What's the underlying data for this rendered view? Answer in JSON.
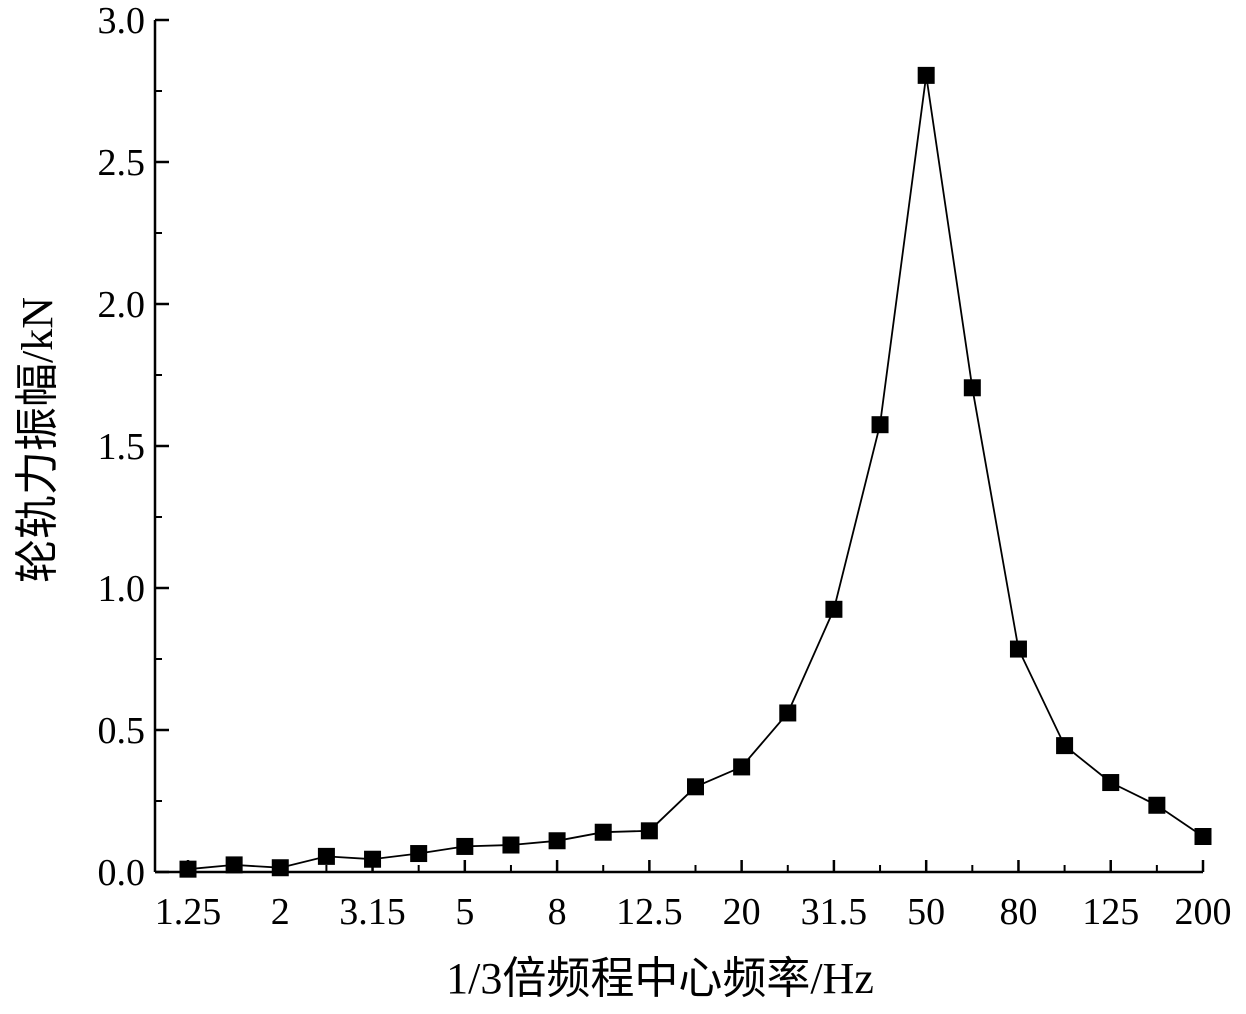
{
  "chart_data": {
    "type": "line",
    "xlabel": "1/3倍频程中心频率/Hz",
    "ylabel": "轮轨力振幅/kN",
    "ylim": [
      0,
      3.0
    ],
    "yticks": [
      "0.0",
      "0.5",
      "1.0",
      "1.5",
      "2.0",
      "2.5",
      "3.0"
    ],
    "x_tick_labels": [
      "1.25",
      "2",
      "3.15",
      "5",
      "8",
      "12.5",
      "20",
      "31.5",
      "50",
      "80",
      "125",
      "200"
    ],
    "grid": false,
    "legend": "none",
    "marker": "square",
    "color": "#000000",
    "series": [
      {
        "x": [
          1.25,
          1.6,
          2,
          2.5,
          3.15,
          4,
          5,
          6.3,
          8,
          10,
          12.5,
          16,
          20,
          25,
          31.5,
          40,
          50,
          63,
          80,
          100,
          125,
          160,
          200
        ],
        "values": [
          0.01,
          0.025,
          0.015,
          0.055,
          0.045,
          0.065,
          0.09,
          0.095,
          0.11,
          0.14,
          0.145,
          0.3,
          0.37,
          0.56,
          0.925,
          1.575,
          2.805,
          1.705,
          0.785,
          0.445,
          0.315,
          0.235,
          0.125
        ]
      }
    ]
  }
}
